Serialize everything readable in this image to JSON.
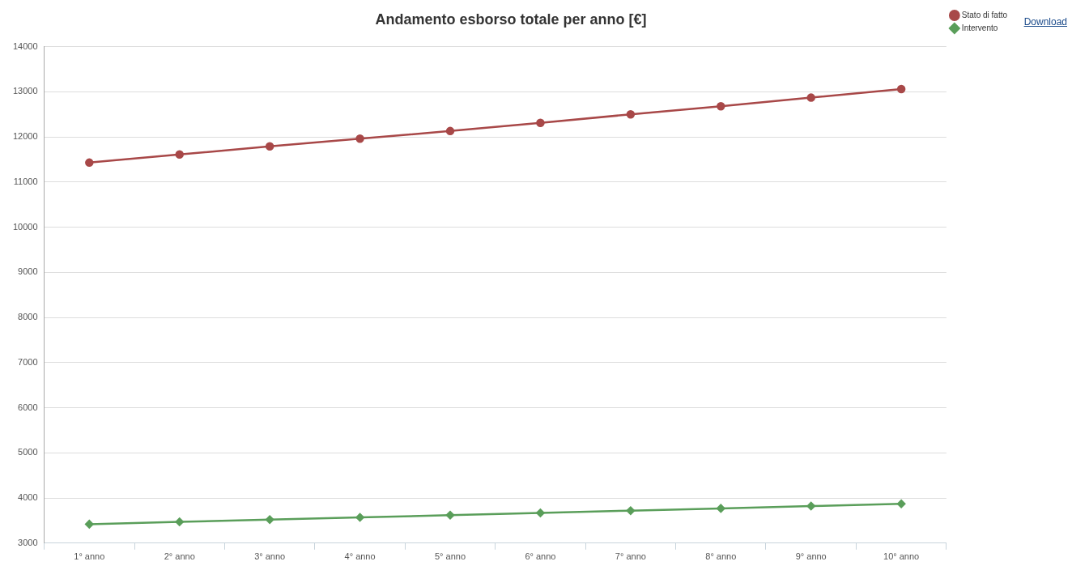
{
  "chart_data": {
    "type": "line",
    "title": "Andamento esborso totale per anno [€]",
    "categories": [
      "1° anno",
      "2° anno",
      "3° anno",
      "4° anno",
      "5° anno",
      "6° anno",
      "7° anno",
      "8° anno",
      "9° anno",
      "10° anno"
    ],
    "series": [
      {
        "name": "Stato di fatto",
        "color": "#a84848",
        "marker": "circle",
        "values": [
          11430,
          11610,
          11790,
          11960,
          12130,
          12310,
          12500,
          12680,
          12870,
          13060
        ]
      },
      {
        "name": "Intervento",
        "color": "#5a9e5a",
        "marker": "diamond",
        "values": [
          3420,
          3470,
          3520,
          3570,
          3620,
          3670,
          3720,
          3770,
          3820,
          3870
        ]
      }
    ],
    "ylim": [
      3000,
      14000
    ],
    "yticks": [
      3000,
      4000,
      5000,
      6000,
      7000,
      8000,
      9000,
      10000,
      11000,
      12000,
      13000,
      14000
    ],
    "grid": "y",
    "legend": "top right",
    "annotations": [
      "Download"
    ]
  }
}
